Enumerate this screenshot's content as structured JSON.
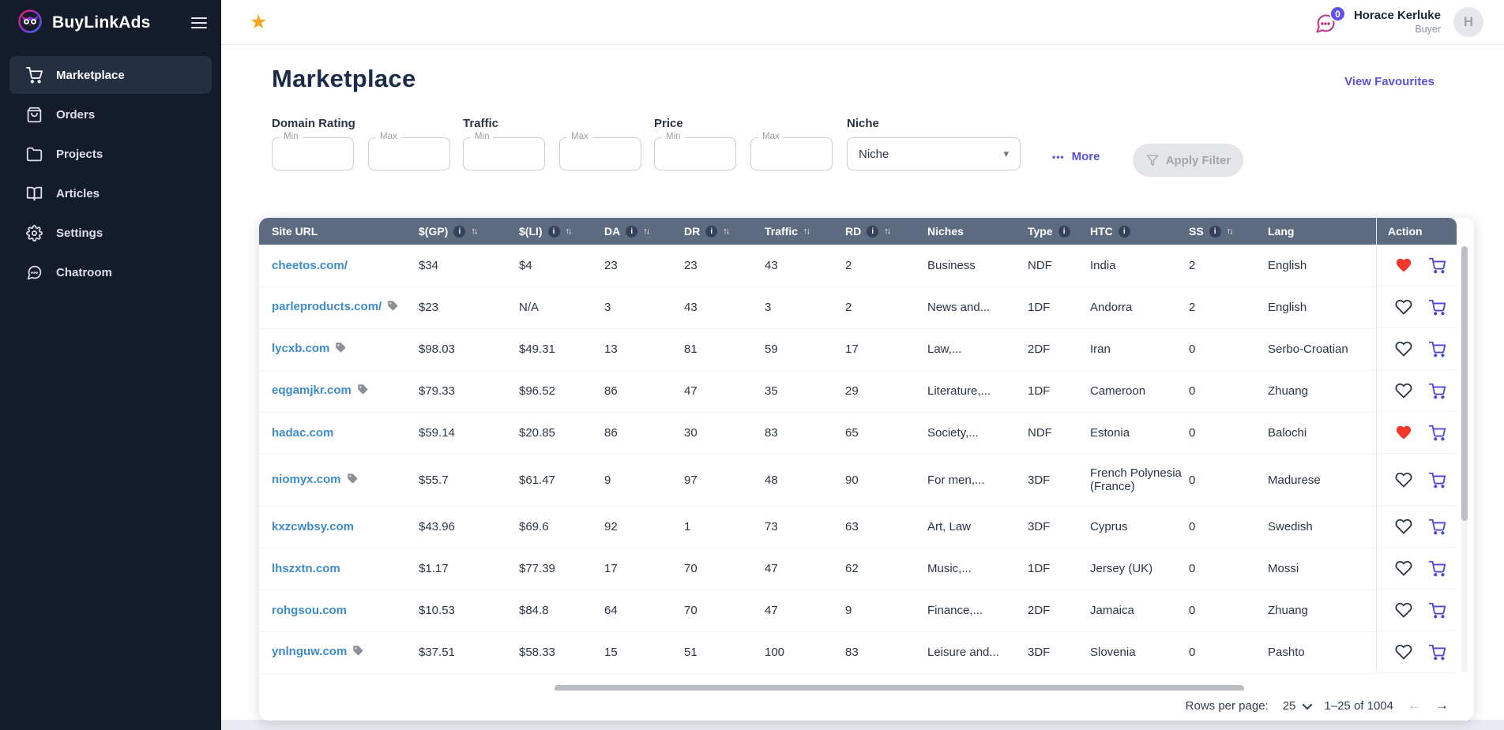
{
  "brand": {
    "name": "BuyLinkAds"
  },
  "sidebar": {
    "items": [
      {
        "label": "Marketplace",
        "icon": "cart-icon",
        "active": true
      },
      {
        "label": "Orders",
        "icon": "bag-icon",
        "active": false
      },
      {
        "label": "Projects",
        "icon": "folder-icon",
        "active": false
      },
      {
        "label": "Articles",
        "icon": "book-icon",
        "active": false
      },
      {
        "label": "Settings",
        "icon": "gear-icon",
        "active": false
      },
      {
        "label": "Chatroom",
        "icon": "chat-icon",
        "active": false
      }
    ]
  },
  "topbar": {
    "star_icon": "star-icon",
    "chat_icon": "chat-bubble-icon",
    "unread_count": "0",
    "user_name": "Horace Kerluke",
    "user_role": "Buyer",
    "avatar_initial": "H"
  },
  "page": {
    "title": "Marketplace",
    "favourites_link": "View Favourites"
  },
  "filters": {
    "groups": [
      {
        "label": "Domain Rating",
        "fields": [
          {
            "label": "Min"
          },
          {
            "label": "Max"
          }
        ]
      },
      {
        "label": "Traffic",
        "fields": [
          {
            "label": "Min"
          },
          {
            "label": "Max"
          }
        ]
      },
      {
        "label": "Price",
        "fields": [
          {
            "label": "Min"
          },
          {
            "label": "Max"
          }
        ]
      }
    ],
    "niche": {
      "label": "Niche",
      "selected": "Niche"
    },
    "more_dots": "•••",
    "more_label": "More",
    "apply_label": "Apply Filter"
  },
  "table": {
    "columns": [
      {
        "label": "Site URL",
        "info": false,
        "sort": false
      },
      {
        "label": "$(GP)",
        "info": true,
        "sort": true
      },
      {
        "label": "$(LI)",
        "info": true,
        "sort": true
      },
      {
        "label": "DA",
        "info": true,
        "sort": true
      },
      {
        "label": "DR",
        "info": true,
        "sort": true
      },
      {
        "label": "Traffic",
        "info": false,
        "sort": true
      },
      {
        "label": "RD",
        "info": true,
        "sort": true
      },
      {
        "label": "Niches",
        "info": false,
        "sort": false
      },
      {
        "label": "Type",
        "info": true,
        "sort": false
      },
      {
        "label": "HTC",
        "info": true,
        "sort": false
      },
      {
        "label": "SS",
        "info": true,
        "sort": true
      },
      {
        "label": "Lang",
        "info": false,
        "sort": false
      }
    ],
    "action_column": "Action",
    "action_icons": [
      "favourite-heart-icon",
      "add-to-cart-icon"
    ],
    "rows": [
      {
        "site_url": "cheetos.com/",
        "tag": false,
        "gp": "$34",
        "li": "$4",
        "da": "23",
        "dr": "23",
        "traffic": "43",
        "rd": "2",
        "niches": "Business",
        "type": "NDF",
        "htc": "India",
        "ss": "2",
        "lang": "English",
        "favourited": true
      },
      {
        "site_url": "parleproducts.com/",
        "tag": true,
        "gp": "$23",
        "li": "N/A",
        "da": "3",
        "dr": "43",
        "traffic": "3",
        "rd": "2",
        "niches": "News and...",
        "type": "1DF",
        "htc": "Andorra",
        "ss": "2",
        "lang": "English",
        "favourited": false
      },
      {
        "site_url": "lycxb.com",
        "tag": true,
        "gp": "$98.03",
        "li": "$49.31",
        "da": "13",
        "dr": "81",
        "traffic": "59",
        "rd": "17",
        "niches": "Law,...",
        "type": "2DF",
        "htc": "Iran",
        "ss": "0",
        "lang": "Serbo-Croatian",
        "favourited": false
      },
      {
        "site_url": "eqgamjkr.com",
        "tag": true,
        "gp": "$79.33",
        "li": "$96.52",
        "da": "86",
        "dr": "47",
        "traffic": "35",
        "rd": "29",
        "niches": "Literature,...",
        "type": "1DF",
        "htc": "Cameroon",
        "ss": "0",
        "lang": "Zhuang",
        "favourited": false
      },
      {
        "site_url": "hadac.com",
        "tag": false,
        "gp": "$59.14",
        "li": "$20.85",
        "da": "86",
        "dr": "30",
        "traffic": "83",
        "rd": "65",
        "niches": "Society,...",
        "type": "NDF",
        "htc": "Estonia",
        "ss": "0",
        "lang": "Balochi",
        "favourited": true
      },
      {
        "site_url": "niomyx.com",
        "tag": true,
        "gp": "$55.7",
        "li": "$61.47",
        "da": "9",
        "dr": "97",
        "traffic": "48",
        "rd": "90",
        "niches": "For men,...",
        "type": "3DF",
        "htc": "French Polynesia (France)",
        "ss": "0",
        "lang": "Madurese",
        "favourited": false
      },
      {
        "site_url": "kxzcwbsy.com",
        "tag": false,
        "gp": "$43.96",
        "li": "$69.6",
        "da": "92",
        "dr": "1",
        "traffic": "73",
        "rd": "63",
        "niches": "Art, Law",
        "type": "3DF",
        "htc": "Cyprus",
        "ss": "0",
        "lang": "Swedish",
        "favourited": false
      },
      {
        "site_url": "lhszxtn.com",
        "tag": false,
        "gp": "$1.17",
        "li": "$77.39",
        "da": "17",
        "dr": "70",
        "traffic": "47",
        "rd": "62",
        "niches": "Music,...",
        "type": "1DF",
        "htc": "Jersey (UK)",
        "ss": "0",
        "lang": "Mossi",
        "favourited": false
      },
      {
        "site_url": "rohgsou.com",
        "tag": false,
        "gp": "$10.53",
        "li": "$84.8",
        "da": "64",
        "dr": "70",
        "traffic": "47",
        "rd": "9",
        "niches": "Finance,...",
        "type": "2DF",
        "htc": "Jamaica",
        "ss": "0",
        "lang": "Zhuang",
        "favourited": false
      },
      {
        "site_url": "ynlnguw.com",
        "tag": true,
        "gp": "$37.51",
        "li": "$58.33",
        "da": "15",
        "dr": "51",
        "traffic": "100",
        "rd": "83",
        "niches": "Leisure and...",
        "type": "3DF",
        "htc": "Slovenia",
        "ss": "0",
        "lang": "Pashto",
        "favourited": false
      }
    ]
  },
  "pagination": {
    "rows_per_page_label": "Rows per page:",
    "rows_per_page": "25",
    "range": "1–25 of 1004",
    "prev_icon": "arrow-left-icon",
    "next_icon": "arrow-right-icon"
  },
  "colors": {
    "sidebar_bg": "#141b2a",
    "header_slate": "#5d6b80",
    "accent_purple": "#5a52da",
    "cart_indigo": "#4c46dd",
    "heart_red": "#f2382c",
    "link_blue": "#3e8bcc",
    "star_yellow": "#f7a515",
    "badge_purple": "#6050e8",
    "chat_magenta": "#bd3583"
  }
}
